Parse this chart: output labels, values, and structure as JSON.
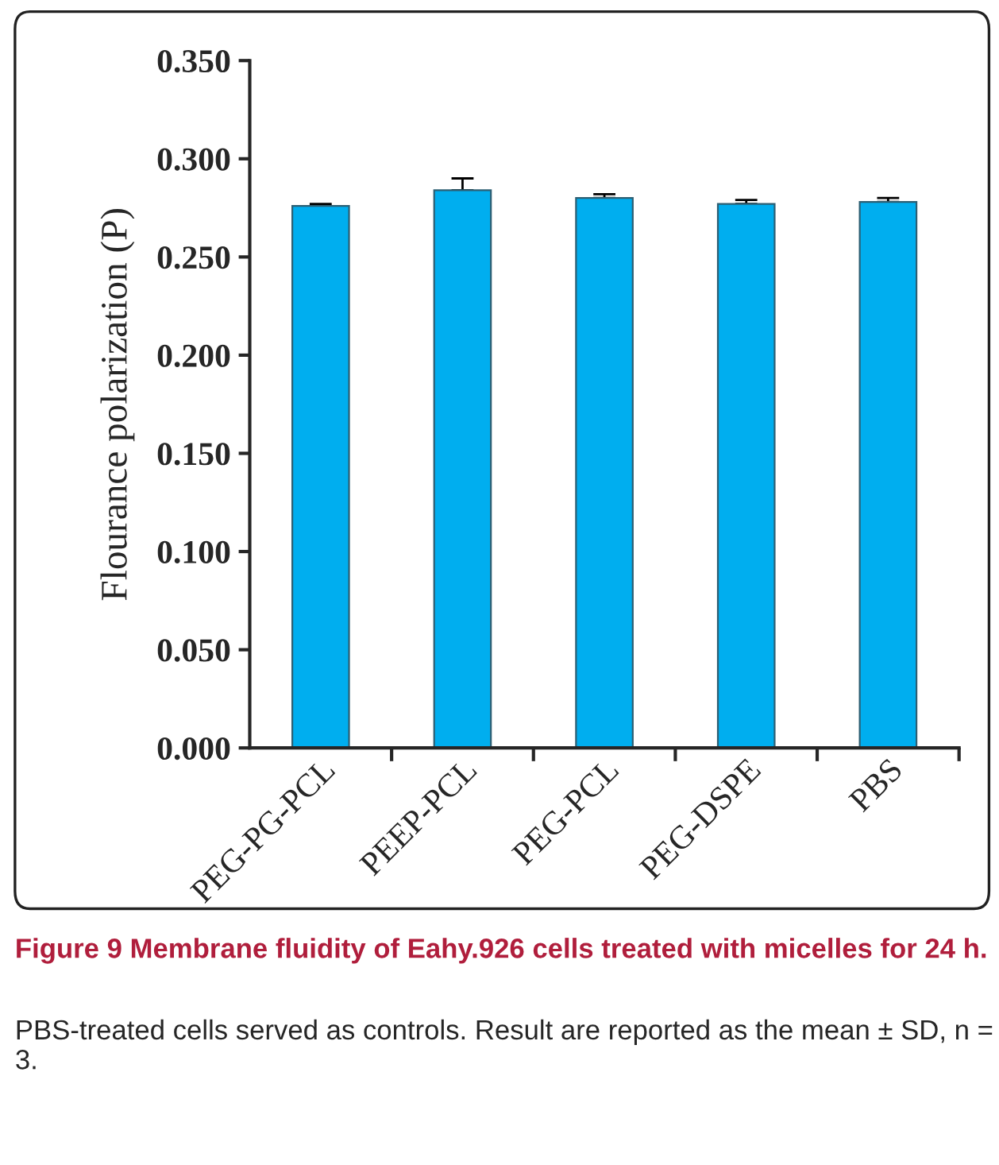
{
  "chart_data": {
    "type": "bar",
    "title": "Figure 9 Membrane fluidity of Eahy.926 cells treated with micelles for 24 h.",
    "annotations": [
      "PBS-treated cells served as controls. Result are reported as the mean ± SD, n = 3."
    ],
    "ylabel": "Flourance polarization (P)",
    "categories": [
      "PEG-PG-PCL",
      "PEEP-PCL",
      "PEG-PCL",
      "PEG-DSPE",
      "PBS"
    ],
    "values": [
      0.276,
      0.284,
      0.28,
      0.277,
      0.278
    ],
    "errors": [
      [
        0.276,
        0.277
      ],
      [
        0.284,
        0.29
      ],
      [
        0.28,
        0.282
      ],
      [
        0.277,
        0.279
      ],
      [
        0.278,
        0.28
      ]
    ],
    "color": "#00aeef",
    "ylim": [
      0,
      0.35
    ],
    "yticks": [
      {
        "value": 0,
        "label": "0.000"
      },
      {
        "value": 0.05,
        "label": "0.050"
      },
      {
        "value": 0.1,
        "label": "0.100"
      },
      {
        "value": 0.15,
        "label": "0.150"
      },
      {
        "value": 0.2,
        "label": "0.200"
      },
      {
        "value": 0.25,
        "label": "0.250"
      },
      {
        "value": 0.3,
        "label": "0.300"
      },
      {
        "value": 0.35,
        "label": "0.350"
      }
    ],
    "grid": false
  }
}
